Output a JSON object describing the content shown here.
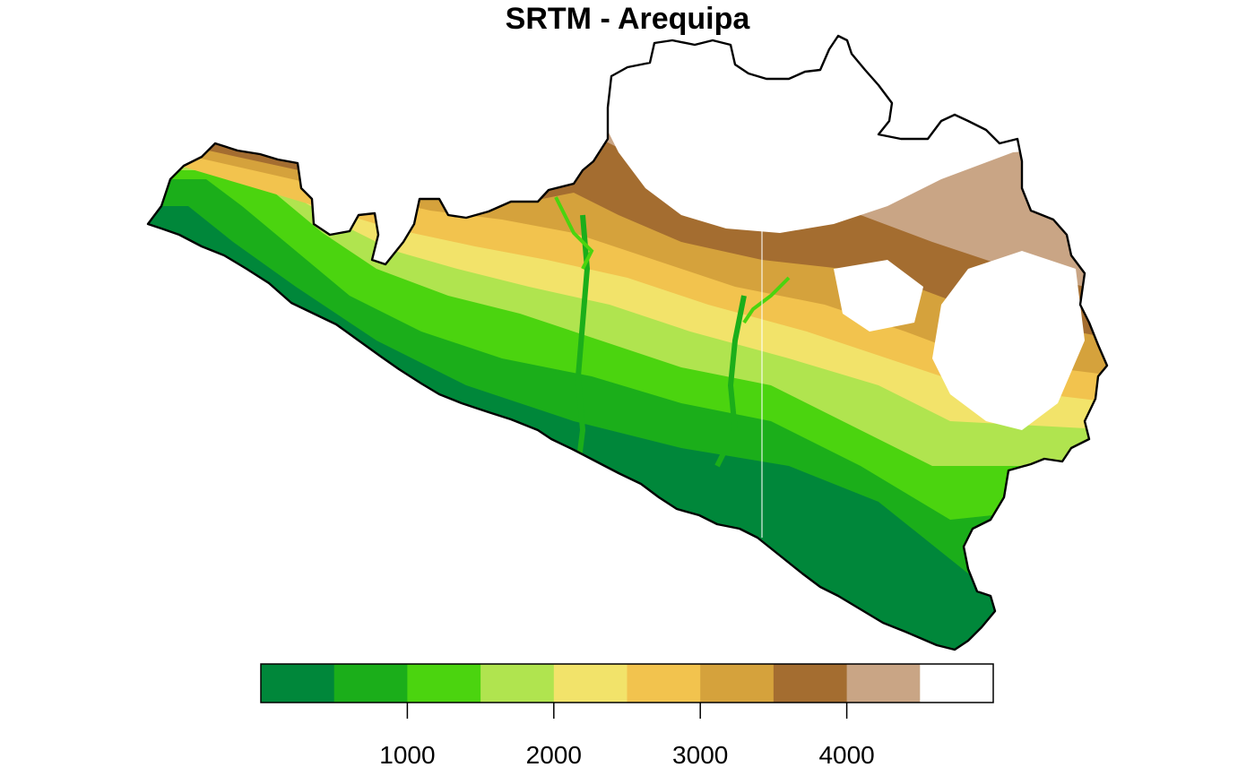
{
  "title": "SRTM - Arequipa",
  "legend": {
    "colors": [
      "#00873a",
      "#1bae1a",
      "#4bd40f",
      "#b0e44f",
      "#f2e36a",
      "#f2c34e",
      "#d5a23c",
      "#a46d30",
      "#c9a585",
      "#ffffff"
    ],
    "breaks": [
      0,
      500,
      1000,
      1500,
      2000,
      2500,
      3000,
      3500,
      4000,
      4500,
      5000
    ],
    "ticks": [
      1000,
      2000,
      3000,
      4000
    ],
    "tick_labels": [
      "1000",
      "2000",
      "3000",
      "4000"
    ]
  }
}
